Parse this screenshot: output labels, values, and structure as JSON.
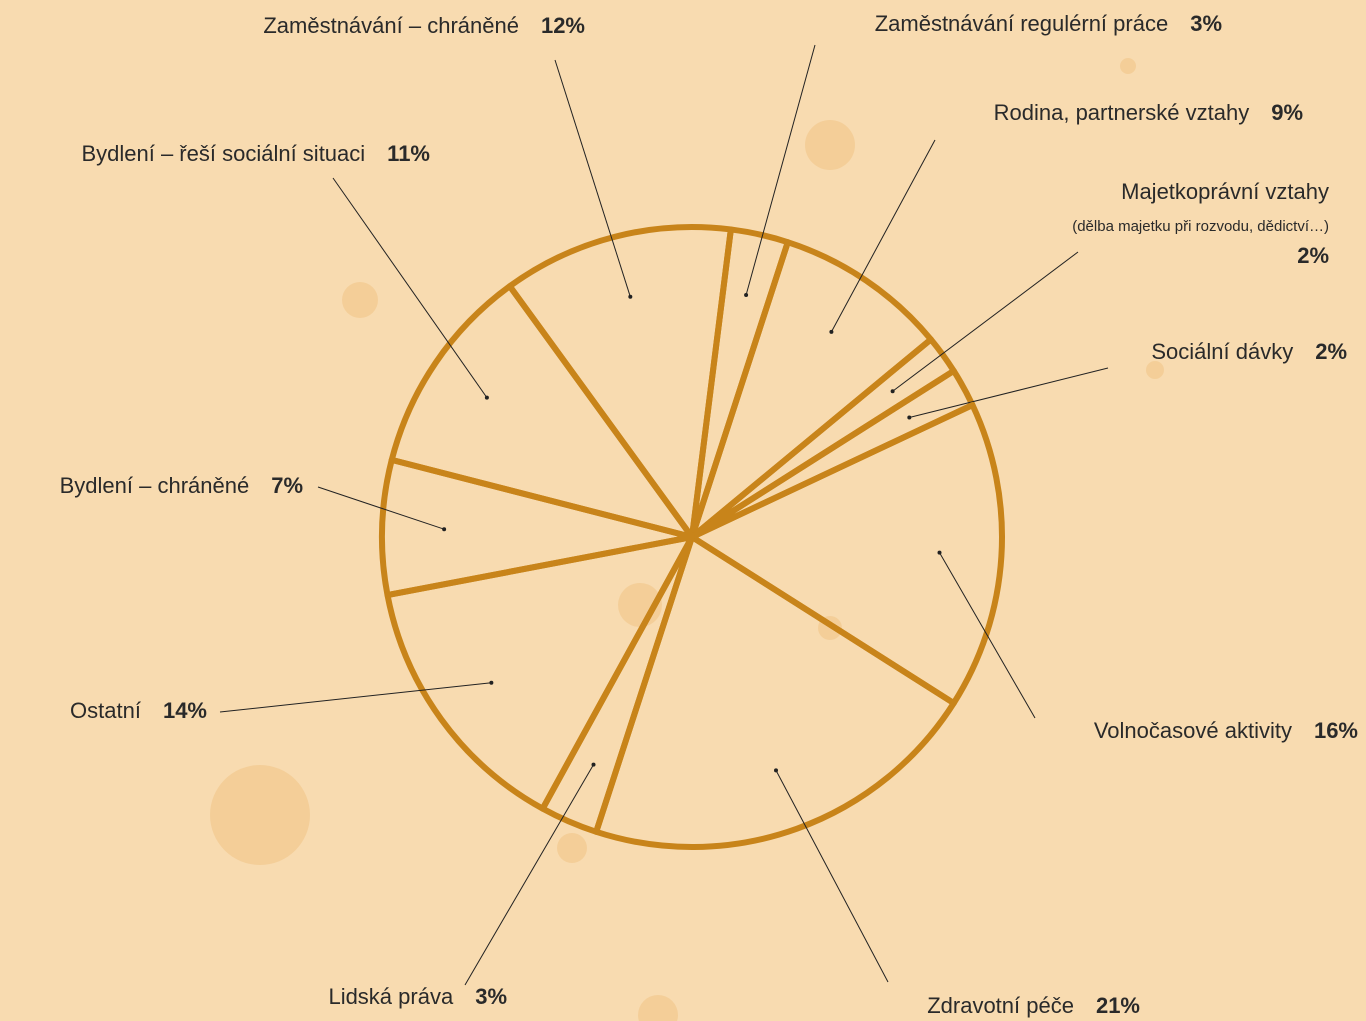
{
  "chart_data": {
    "type": "pie",
    "categories": [
      "Zaměstnávání – chráněné",
      "Zaměstnávání regulérní práce",
      "Rodina, partnerské vztahy",
      "Majetkoprávní vztahy",
      "Sociální dávky",
      "Volnočasové aktivity",
      "Zdravotní péče",
      "Lidská práva",
      "Ostatní",
      "Bydlení – chráněné",
      "Bydlení – řeší sociální situaci"
    ],
    "values": [
      12,
      3,
      9,
      2,
      2,
      16,
      21,
      3,
      14,
      7,
      11
    ],
    "value_labels": [
      "12%",
      "3%",
      "9%",
      "2%",
      "2%",
      "16%",
      "21%",
      "3%",
      "14%",
      "7%",
      "11%"
    ],
    "annotation": "(dělba majetku při rozvodu, dědictví…)",
    "color": "#c8841a"
  }
}
